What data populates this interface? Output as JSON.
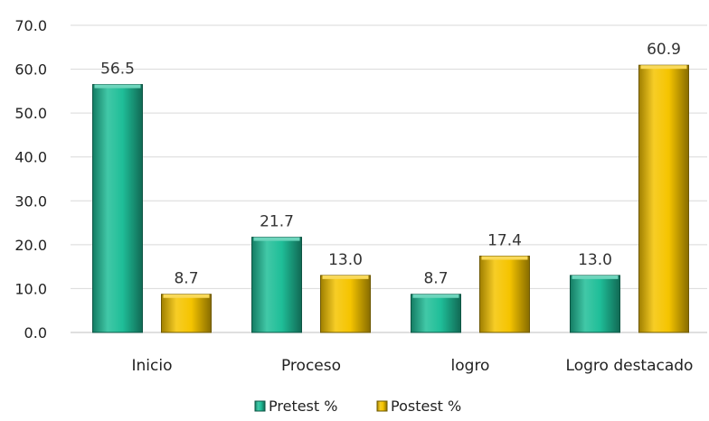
{
  "chart_data": {
    "type": "bar",
    "categories": [
      "Inicio",
      "Proceso",
      "logro",
      "Logro destacado"
    ],
    "series": [
      {
        "name": "Pretest %",
        "values": [
          56.5,
          21.7,
          8.7,
          13.0
        ],
        "color": "#1FBE98"
      },
      {
        "name": "Postest %",
        "values": [
          8.7,
          13.0,
          17.4,
          60.9
        ],
        "color": "#F5C400"
      }
    ],
    "data_labels": [
      [
        "56.5",
        "21.7",
        "8.7",
        "13.0"
      ],
      [
        "8.7",
        "13.0",
        "17.4",
        "60.9"
      ]
    ],
    "y_ticks": [
      "0.0",
      "10.0",
      "20.0",
      "30.0",
      "40.0",
      "50.0",
      "60.0",
      "70.0"
    ],
    "ylim": [
      0,
      70
    ],
    "grid": true,
    "legend_position": "bottom-center",
    "title": "",
    "xlabel": "",
    "ylabel": ""
  }
}
